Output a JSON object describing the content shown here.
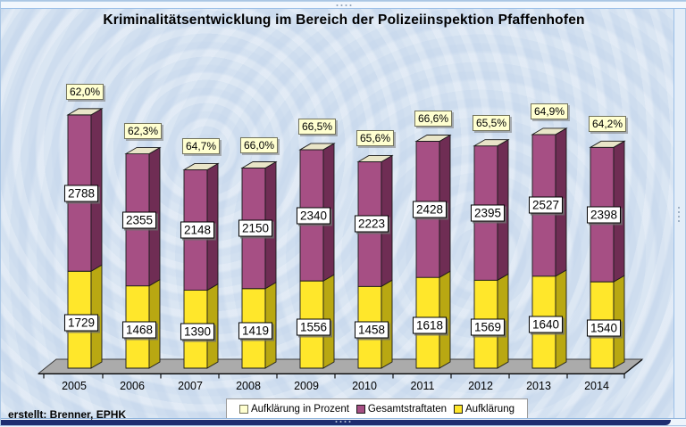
{
  "title": "Kriminalitätsentwicklung im Bereich der Polizeiinspektion Pfaffenhofen",
  "credit": "erstellt: Brenner, EPHK",
  "legend": {
    "position": "bottom",
    "items": [
      {
        "label": "Aufklärung in Prozent",
        "swatch_color": "#ffffd0",
        "swatch_border": "#73735c"
      },
      {
        "label": "Gesamtstraftaten",
        "swatch_color": "#a64f84",
        "swatch_border": "#1a1a1a"
      },
      {
        "label": "Aufklärung",
        "swatch_color": "#ffe72b",
        "swatch_border": "#1a1a1a"
      }
    ]
  },
  "chart_data": {
    "type": "bar",
    "subtype": "3d-stacked-column",
    "title": "Kriminalitätsentwicklung im Bereich der Polizeiinspektion Pfaffenhofen",
    "xlabel": "",
    "ylabel": "",
    "grid": false,
    "legend_position": "bottom",
    "categories": [
      "2005",
      "2006",
      "2007",
      "2008",
      "2009",
      "2010",
      "2011",
      "2012",
      "2013",
      "2014"
    ],
    "series": [
      {
        "name": "Aufklärung",
        "values": [
          1729,
          1468,
          1390,
          1419,
          1556,
          1458,
          1618,
          1569,
          1640,
          1540
        ]
      },
      {
        "name": "Gesamtstraftaten",
        "values": [
          2788,
          2355,
          2148,
          2150,
          2340,
          2223,
          2428,
          2395,
          2527,
          2398
        ]
      }
    ],
    "percent_labels": [
      "62,0%",
      "62,3%",
      "64,7%",
      "66,0%",
      "66,5%",
      "65,6%",
      "66,6%",
      "65,5%",
      "64,9%",
      "64,2%"
    ]
  },
  "colors": {
    "aufklaerung_front": "#ffe72b",
    "aufklaerung_side": "#b9a812",
    "gesamt_front": "#a64f84",
    "gesamt_side": "#6f2d54",
    "bar_top": "#e9e5c8",
    "bar_outline": "#1a1a1a",
    "floor_fill": "#ababab",
    "floor_outline": "#3c3c3c",
    "axis": "#000000",
    "background": "#d2e0f0",
    "bottom_bar": "#1e2d70"
  }
}
